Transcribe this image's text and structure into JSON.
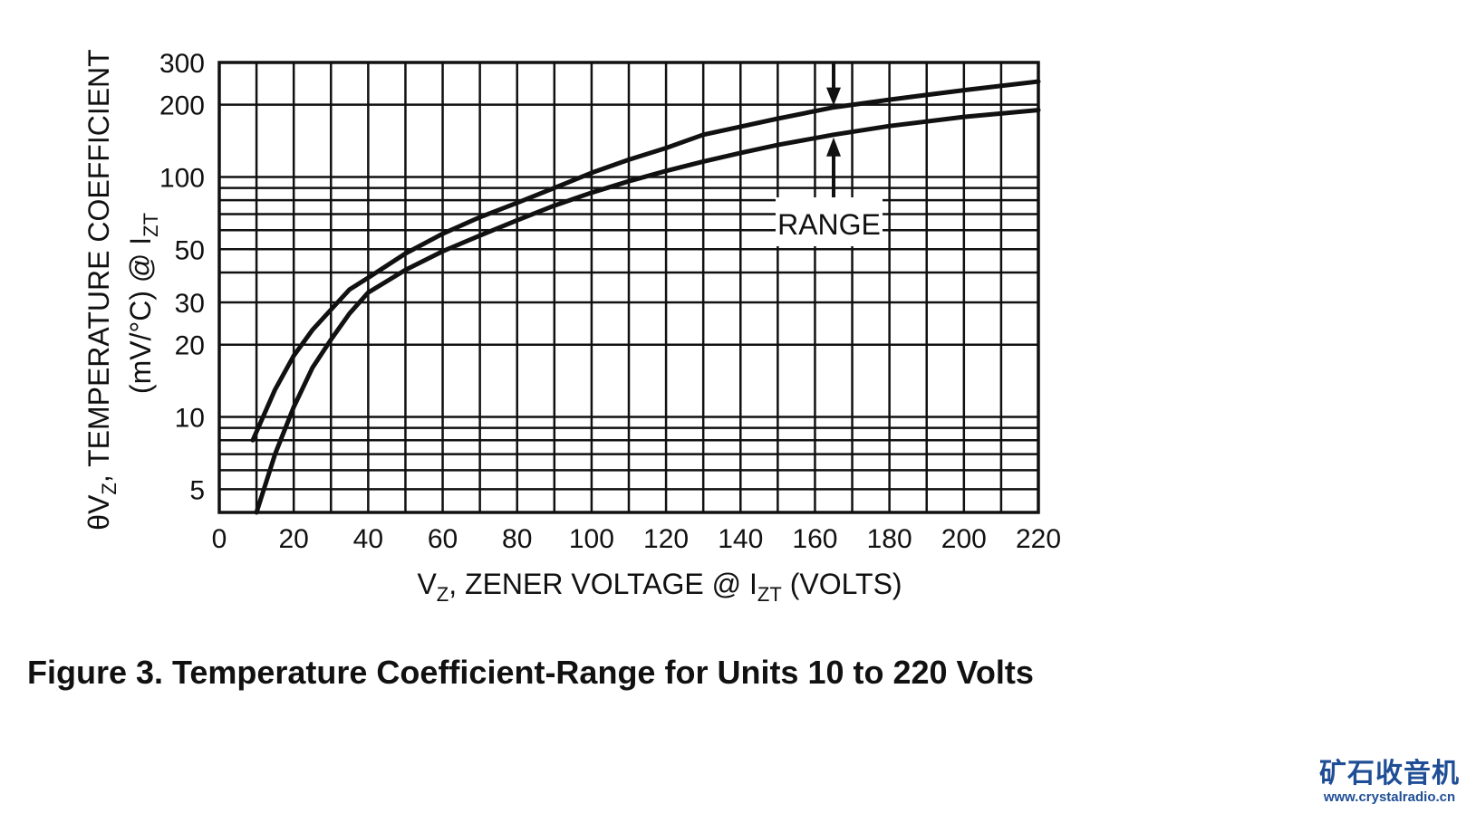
{
  "chart_data": {
    "type": "line",
    "y_scale": "log",
    "xlim": [
      0,
      220
    ],
    "ylim": [
      4,
      300
    ],
    "x_ticks": [
      0,
      20,
      40,
      60,
      80,
      100,
      120,
      140,
      160,
      180,
      200,
      220
    ],
    "x_tick_labels": [
      "0",
      "20",
      "40",
      "60",
      "80",
      "100",
      "120",
      "140",
      "160",
      "180",
      "200",
      "220"
    ],
    "y_ticks": [
      5,
      10,
      20,
      30,
      50,
      100,
      200,
      300
    ],
    "y_tick_labels": [
      "5",
      "10",
      "20",
      "30",
      "50",
      "100",
      "200",
      "300"
    ],
    "grid": true,
    "ylabel": {
      "line1_prefix": "θV",
      "line1_sub": "Z",
      "line1_suffix": ", TEMPERATURE COEFFICIENT",
      "line2_prefix": "(mV/°C) @ I",
      "line2_sub": "ZT"
    },
    "xlabel": {
      "prefix": "V",
      "sub1": "Z",
      "middle": ", ZENER VOLTAGE @ I",
      "sub2": "ZT",
      "suffix": " (VOLTS)"
    },
    "annotation": "RANGE",
    "series": [
      {
        "x": [
          9,
          15,
          20,
          25,
          30,
          35,
          40,
          50,
          60,
          70,
          80,
          90,
          100,
          110,
          120,
          130,
          140,
          150,
          165,
          180,
          200,
          220
        ],
        "values": [
          8,
          13,
          18,
          23,
          28,
          34,
          38,
          48,
          58,
          68,
          78,
          90,
          104,
          118,
          132,
          150,
          162,
          175,
          195,
          210,
          230,
          250
        ]
      },
      {
        "x": [
          10,
          15,
          20,
          25,
          30,
          35,
          40,
          50,
          60,
          70,
          80,
          90,
          100,
          110,
          120,
          130,
          140,
          150,
          165,
          180,
          200,
          220
        ],
        "values": [
          4,
          7,
          11,
          16,
          21,
          27,
          33,
          41,
          49,
          57,
          66,
          76,
          86,
          96,
          106,
          116,
          126,
          136,
          150,
          163,
          178,
          190
        ]
      }
    ]
  },
  "caption": "Figure 3. Temperature Coefficient-Range for Units 10 to 220 Volts",
  "logo": {
    "chinese_text": "矿石收音机",
    "url_text": "www.crystalradio.cn",
    "color": "#1f4e96"
  }
}
